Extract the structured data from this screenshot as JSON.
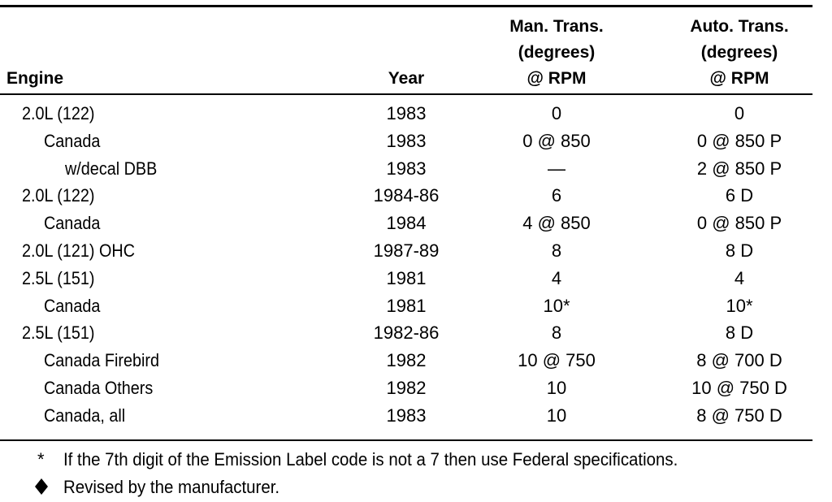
{
  "table": {
    "headers": [
      [
        "Engine"
      ],
      [
        "Year"
      ],
      [
        "Man. Trans.",
        "(degrees)",
        "@ RPM"
      ],
      [
        "Auto. Trans.",
        "(degrees)",
        "@ RPM"
      ]
    ],
    "rows": [
      [
        "2.0L (122)",
        "1983",
        "0",
        "0"
      ],
      [
        "Canada",
        "1983",
        "0 @ 850",
        "0 @ 850 P"
      ],
      [
        "w/decal DBB",
        "1983",
        "—",
        "2 @ 850 P"
      ],
      [
        "2.0L (122)",
        "1984-86",
        "6",
        "6 D"
      ],
      [
        "Canada",
        "1984",
        "4 @ 850",
        "0 @ 850 P"
      ],
      [
        "2.0L (121) OHC",
        "1987-89",
        "8",
        "8 D"
      ],
      [
        "2.5L (151)",
        "1981",
        "4",
        "4"
      ],
      [
        "Canada",
        "1981",
        "10*",
        "10*"
      ],
      [
        "2.5L (151)",
        "1982-86",
        "8",
        "8 D"
      ],
      [
        "Canada Firebird",
        "1982",
        "10 @ 750",
        "8 @ 700 D"
      ],
      [
        "Canada Others",
        "1982",
        "10",
        "10 @ 750 D"
      ],
      [
        "Canada, all",
        "1983",
        "10",
        "8 @ 750 D"
      ]
    ]
  },
  "footnotes": [
    {
      "marker": "*",
      "text": "If the 7th digit of the Emission Label code is not a 7 then use Federal specifications."
    },
    {
      "text": "Revised by the manufacturer."
    }
  ]
}
